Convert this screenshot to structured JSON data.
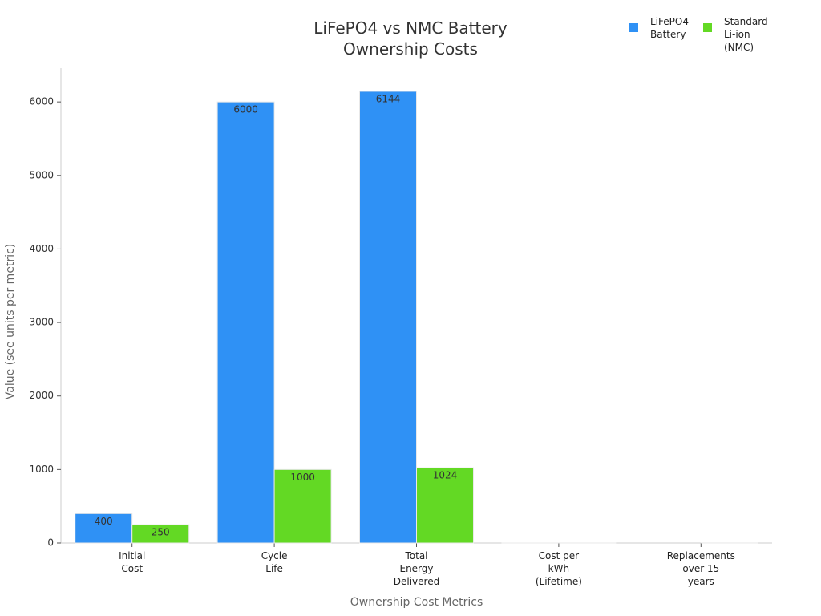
{
  "chart_data": {
    "type": "bar",
    "title": "LiFePO4 vs NMC Battery\nOwnership Costs",
    "x_label": "Ownership Cost Metrics",
    "y_label": "Value (see units per metric)",
    "categories": [
      "Initial\nCost",
      "Cycle\nLife",
      "Total\nEnergy\nDelivered",
      "Cost per\nkWh\n(Lifetime)",
      "Replacements\nover 15\nyears"
    ],
    "series": [
      {
        "name": "LiFePO4\nBattery",
        "color": "#2f91f5",
        "values": [
          400,
          6000,
          6144,
          0.07,
          0
        ]
      },
      {
        "name": "Standard\nLi-ion\n(NMC)",
        "color": "#63d924",
        "values": [
          250,
          1000,
          1024,
          0.24,
          1
        ]
      }
    ],
    "ylim": [
      0,
      6460
    ],
    "yticks": [
      0,
      1000,
      2000,
      3000,
      4000,
      5000,
      6000
    ],
    "grid": false,
    "legend": "top-right"
  }
}
